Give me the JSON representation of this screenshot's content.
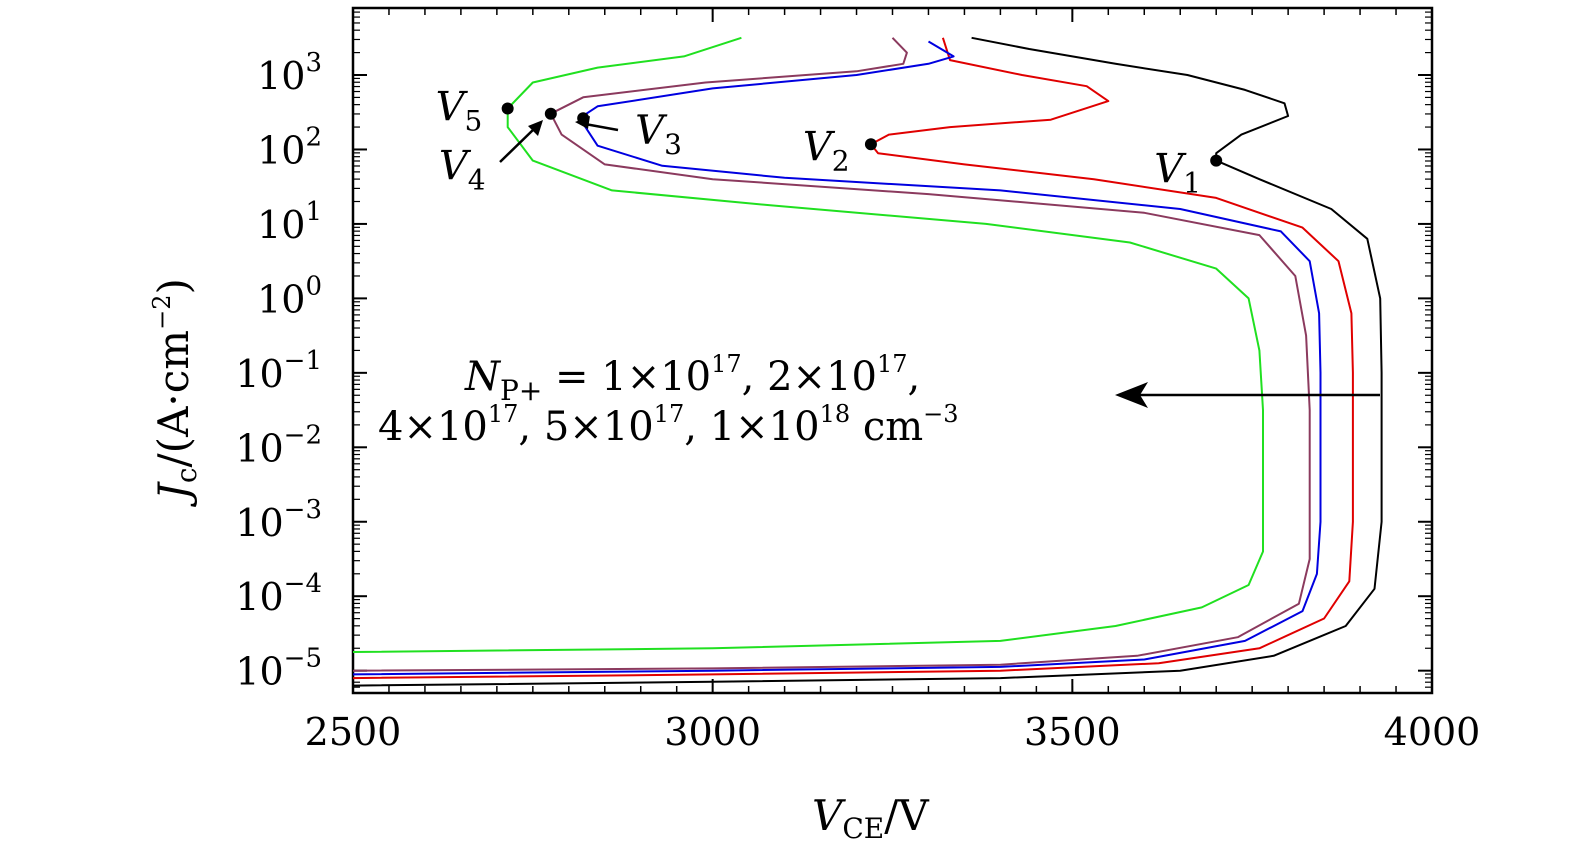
{
  "chart_data": {
    "type": "line",
    "xlabel": {
      "main": "V",
      "sub": "CE",
      "unit": "/V"
    },
    "ylabel": {
      "main": "J",
      "sub": "c",
      "unit": "/(A·cm",
      "unit_sup": "−2",
      "unit_close": ")"
    },
    "xlim": [
      2500,
      4000
    ],
    "ylim_log10": [
      -5.3,
      3.9
    ],
    "x_ticks": [
      {
        "value": 2500,
        "label": "2500"
      },
      {
        "value": 3000,
        "label": "3000"
      },
      {
        "value": 3500,
        "label": "3500"
      },
      {
        "value": 4000,
        "label": "4000"
      }
    ],
    "y_ticks": [
      {
        "exp": 3,
        "base": "10",
        "sup": "3"
      },
      {
        "exp": 2,
        "base": "10",
        "sup": "2"
      },
      {
        "exp": 1,
        "base": "10",
        "sup": "1"
      },
      {
        "exp": 0,
        "base": "10",
        "sup": "0"
      },
      {
        "exp": -1,
        "base": "10",
        "sup": "−1"
      },
      {
        "exp": -2,
        "base": "10",
        "sup": "−2"
      },
      {
        "exp": -3,
        "base": "10",
        "sup": "−3"
      },
      {
        "exp": -4,
        "base": "10",
        "sup": "−4"
      },
      {
        "exp": -5,
        "base": "10",
        "sup": "−5"
      }
    ],
    "series": [
      {
        "color": "#000000",
        "x_log10_y": [
          [
            2500,
            -5.2
          ],
          [
            3000,
            -5.15
          ],
          [
            3400,
            -5.1
          ],
          [
            3650,
            -5.0
          ],
          [
            3780,
            -4.8
          ],
          [
            3880,
            -4.4
          ],
          [
            3920,
            -3.9
          ],
          [
            3930,
            -3.0
          ],
          [
            3930,
            -2.0
          ],
          [
            3930,
            -1.0
          ],
          [
            3928,
            0.0
          ],
          [
            3910,
            0.8
          ],
          [
            3860,
            1.2
          ],
          [
            3760,
            1.6
          ],
          [
            3700,
            1.85
          ],
          [
            3700,
            1.95
          ],
          [
            3735,
            2.2
          ],
          [
            3800,
            2.45
          ],
          [
            3795,
            2.62
          ],
          [
            3740,
            2.8
          ],
          [
            3660,
            3.0
          ],
          [
            3560,
            3.15
          ],
          [
            3440,
            3.35
          ],
          [
            3360,
            3.5
          ]
        ]
      },
      {
        "color": "#e00000",
        "x_log10_y": [
          [
            2500,
            -5.1
          ],
          [
            3000,
            -5.05
          ],
          [
            3400,
            -5.0
          ],
          [
            3620,
            -4.9
          ],
          [
            3760,
            -4.7
          ],
          [
            3850,
            -4.3
          ],
          [
            3885,
            -3.8
          ],
          [
            3890,
            -3.0
          ],
          [
            3890,
            -2.0
          ],
          [
            3890,
            -1.0
          ],
          [
            3888,
            -0.2
          ],
          [
            3870,
            0.5
          ],
          [
            3820,
            0.95
          ],
          [
            3700,
            1.35
          ],
          [
            3530,
            1.6
          ],
          [
            3350,
            1.8
          ],
          [
            3230,
            1.95
          ],
          [
            3220,
            2.07
          ],
          [
            3245,
            2.2
          ],
          [
            3330,
            2.3
          ],
          [
            3470,
            2.4
          ],
          [
            3550,
            2.65
          ],
          [
            3520,
            2.85
          ],
          [
            3430,
            3.0
          ],
          [
            3330,
            3.2
          ],
          [
            3320,
            3.5
          ]
        ]
      },
      {
        "color": "#0000e0",
        "x_log10_y": [
          [
            2500,
            -5.05
          ],
          [
            3000,
            -5.0
          ],
          [
            3400,
            -4.95
          ],
          [
            3600,
            -4.85
          ],
          [
            3740,
            -4.6
          ],
          [
            3820,
            -4.2
          ],
          [
            3840,
            -3.7
          ],
          [
            3845,
            -3.0
          ],
          [
            3845,
            -2.0
          ],
          [
            3845,
            -1.0
          ],
          [
            3843,
            -0.2
          ],
          [
            3830,
            0.5
          ],
          [
            3790,
            0.9
          ],
          [
            3650,
            1.2
          ],
          [
            3400,
            1.45
          ],
          [
            3100,
            1.62
          ],
          [
            2930,
            1.78
          ],
          [
            2840,
            2.05
          ],
          [
            2815,
            2.42
          ],
          [
            2840,
            2.58
          ],
          [
            3000,
            2.82
          ],
          [
            3200,
            3.0
          ],
          [
            3300,
            3.15
          ],
          [
            3335,
            3.25
          ],
          [
            3300,
            3.45
          ]
        ]
      },
      {
        "color": "#8b3a5e",
        "x_log10_y": [
          [
            2500,
            -5.0
          ],
          [
            3000,
            -4.97
          ],
          [
            3400,
            -4.92
          ],
          [
            3590,
            -4.8
          ],
          [
            3730,
            -4.55
          ],
          [
            3815,
            -4.1
          ],
          [
            3830,
            -3.5
          ],
          [
            3830,
            -2.5
          ],
          [
            3830,
            -1.5
          ],
          [
            3825,
            -0.5
          ],
          [
            3810,
            0.3
          ],
          [
            3760,
            0.85
          ],
          [
            3600,
            1.15
          ],
          [
            3300,
            1.4
          ],
          [
            3000,
            1.6
          ],
          [
            2850,
            1.8
          ],
          [
            2790,
            2.2
          ],
          [
            2775,
            2.48
          ],
          [
            2820,
            2.7
          ],
          [
            2990,
            2.9
          ],
          [
            3200,
            3.05
          ],
          [
            3265,
            3.15
          ],
          [
            3270,
            3.3
          ],
          [
            3250,
            3.5
          ]
        ]
      },
      {
        "color": "#20e020",
        "x_log10_y": [
          [
            2500,
            -4.75
          ],
          [
            3000,
            -4.7
          ],
          [
            3400,
            -4.6
          ],
          [
            3560,
            -4.4
          ],
          [
            3680,
            -4.15
          ],
          [
            3745,
            -3.85
          ],
          [
            3765,
            -3.4
          ],
          [
            3765,
            -2.5
          ],
          [
            3765,
            -1.5
          ],
          [
            3760,
            -0.7
          ],
          [
            3745,
            0.0
          ],
          [
            3700,
            0.4
          ],
          [
            3580,
            0.75
          ],
          [
            3380,
            1.0
          ],
          [
            3080,
            1.25
          ],
          [
            2860,
            1.45
          ],
          [
            2750,
            1.85
          ],
          [
            2715,
            2.3
          ],
          [
            2715,
            2.55
          ],
          [
            2750,
            2.9
          ],
          [
            2840,
            3.1
          ],
          [
            2960,
            3.25
          ],
          [
            3040,
            3.5
          ]
        ]
      }
    ],
    "points": [
      {
        "name": "V",
        "sub": "1",
        "x": 3700,
        "log10_y": 1.85
      },
      {
        "name": "V",
        "sub": "2",
        "x": 3220,
        "log10_y": 2.07
      },
      {
        "name": "V",
        "sub": "3",
        "x": 2820,
        "log10_y": 2.42
      },
      {
        "name": "V",
        "sub": "4",
        "x": 2775,
        "log10_y": 2.48
      },
      {
        "name": "V",
        "sub": "5",
        "x": 2715,
        "log10_y": 2.55
      }
    ],
    "annotation": {
      "line1": {
        "N": "N",
        "N_sub": "P+",
        "text": " = 1×10",
        "e1": "17",
        "t2": ", 2×10",
        "e2": "17",
        "t3": ","
      },
      "line2": {
        "t1": "4×10",
        "e1": "17",
        "t2": ", 5×10",
        "e2": "17",
        "t3": ", 1×10",
        "e3": "18",
        "t4": " cm",
        "e4": "−3"
      }
    }
  }
}
